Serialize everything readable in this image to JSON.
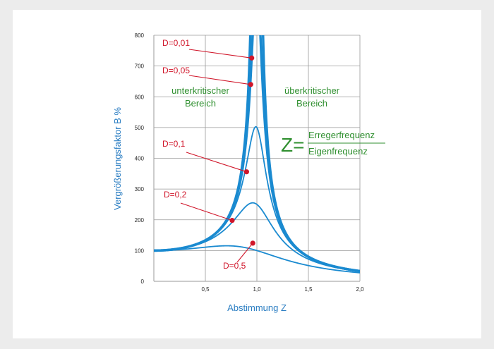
{
  "chart_data": {
    "type": "line",
    "xlabel": "Abstimmung Z",
    "ylabel": "Vergrößerungsfaktor B %",
    "xlim": [
      0,
      2.0
    ],
    "ylim": [
      0,
      800
    ],
    "x_ticks": [
      "0,5",
      "1,0",
      "1,5",
      "2,0"
    ],
    "y_ticks": [
      "0",
      "100",
      "200",
      "300",
      "400",
      "500",
      "600",
      "700",
      "800"
    ],
    "grid": true,
    "series": [
      {
        "name": "D=0,01",
        "D": 0.01,
        "style": "thick"
      },
      {
        "name": "D=0,05",
        "D": 0.05,
        "style": "thick"
      },
      {
        "name": "D=0,1",
        "D": 0.1,
        "style": "thin"
      },
      {
        "name": "D=0,2",
        "D": 0.2,
        "style": "thin"
      },
      {
        "name": "D=0,5",
        "D": 0.5,
        "style": "thin"
      },
      {
        "name": "",
        "D": 0.0,
        "style": "dashed"
      }
    ],
    "annotations": [
      {
        "text": "D=0,01",
        "x": 0.95,
        "y": 726
      },
      {
        "text": "D=0,05",
        "x": 0.94,
        "y": 640
      },
      {
        "text": "D=0,1",
        "x": 0.9,
        "y": 356
      },
      {
        "text": "D=0,2",
        "x": 0.76,
        "y": 198
      },
      {
        "text": "D=0,5",
        "x": 0.96,
        "y": 124
      }
    ],
    "regions": {
      "left": [
        "unterkritischer",
        "Bereich"
      ],
      "right": [
        "überkritischer",
        "Bereich"
      ]
    },
    "formula": {
      "symbol": "Z=",
      "numerator": "Erregerfrequenz",
      "denominator": "Eigenfrequenz"
    }
  },
  "colors": {
    "curve": "#1a8ad0",
    "annotation": "#d0162a",
    "region_text": "#2f8f2f",
    "axis_title": "#2a7dc2",
    "grid": "#9a9a9a"
  }
}
